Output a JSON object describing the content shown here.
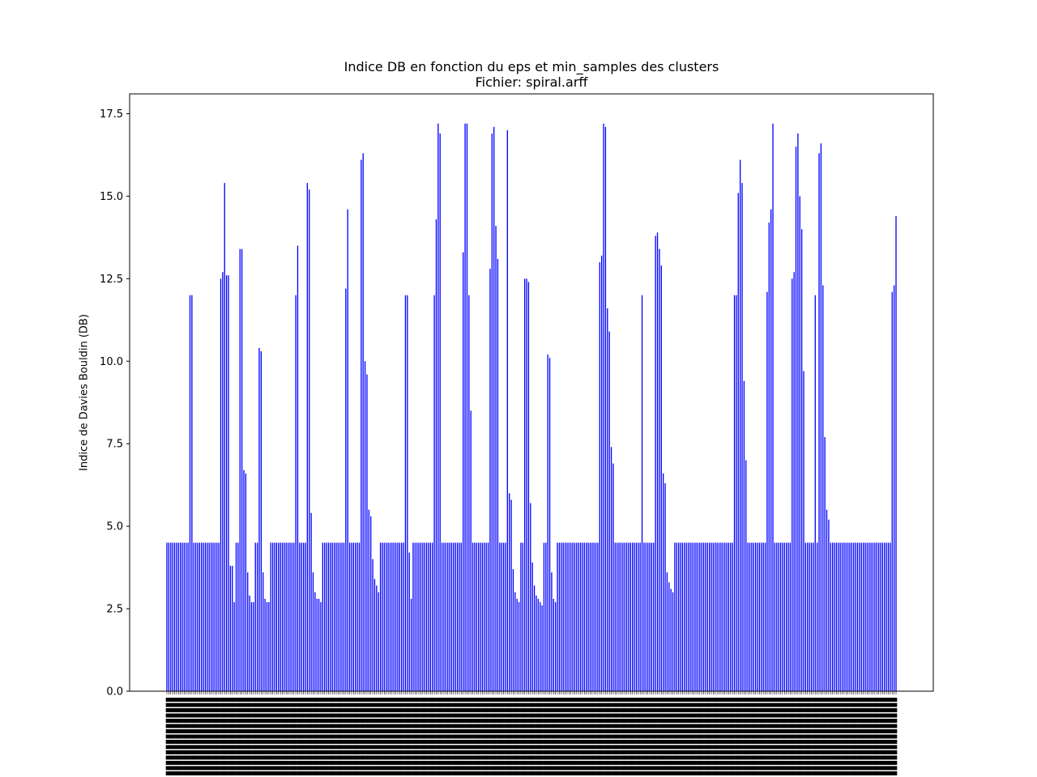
{
  "chart_data": {
    "type": "bar",
    "title": "Indice DB en fonction du eps et min_samples des clusters",
    "subtitle": "Fichier: spiral.arff",
    "xlabel": "",
    "ylabel": "Indice de Davies Bouldin (DB)",
    "ylim": [
      0,
      18.1
    ],
    "yticks": [
      "0.0",
      "2.5",
      "5.0",
      "7.5",
      "10.0",
      "12.5",
      "15.0",
      "17.5"
    ],
    "grid": false,
    "bar_color": "#0000ff",
    "x_tick_labels_legible": false,
    "values": [
      4.5,
      4.5,
      4.5,
      4.5,
      4.5,
      4.5,
      4.5,
      4.5,
      4.5,
      4.5,
      4.5,
      4.5,
      12.0,
      12.0,
      4.5,
      4.5,
      4.5,
      4.5,
      4.5,
      4.5,
      4.5,
      4.5,
      4.5,
      4.5,
      4.5,
      4.5,
      4.5,
      4.5,
      12.5,
      12.7,
      15.4,
      12.6,
      12.6,
      3.8,
      3.8,
      2.7,
      4.5,
      4.5,
      13.4,
      13.4,
      6.7,
      6.6,
      3.6,
      2.9,
      2.7,
      2.7,
      4.5,
      4.5,
      10.4,
      10.3,
      3.6,
      2.8,
      2.7,
      2.7,
      4.5,
      4.5,
      4.5,
      4.5,
      4.5,
      4.5,
      4.5,
      4.5,
      4.5,
      4.5,
      4.5,
      4.5,
      4.5,
      12.0,
      13.5,
      4.5,
      4.5,
      4.5,
      4.5,
      15.4,
      15.2,
      5.4,
      3.6,
      3.0,
      2.8,
      2.8,
      2.7,
      4.5,
      4.5,
      4.5,
      4.5,
      4.5,
      4.5,
      4.5,
      4.5,
      4.5,
      4.5,
      4.5,
      4.5,
      12.2,
      14.6,
      4.5,
      4.5,
      4.5,
      4.5,
      4.5,
      4.5,
      16.1,
      16.3,
      10.0,
      9.6,
      5.5,
      5.3,
      4.0,
      3.4,
      3.2,
      3.0,
      4.5,
      4.5,
      4.5,
      4.5,
      4.5,
      4.5,
      4.5,
      4.5,
      4.5,
      4.5,
      4.5,
      4.5,
      4.5,
      12.0,
      12.0,
      4.2,
      2.8,
      4.5,
      4.5,
      4.5,
      4.5,
      4.5,
      4.5,
      4.5,
      4.5,
      4.5,
      4.5,
      4.5,
      12.0,
      14.3,
      17.2,
      16.9,
      4.5,
      4.5,
      4.5,
      4.5,
      4.5,
      4.5,
      4.5,
      4.5,
      4.5,
      4.5,
      4.5,
      13.3,
      17.2,
      17.2,
      12.0,
      8.5,
      4.5,
      4.5,
      4.5,
      4.5,
      4.5,
      4.5,
      4.5,
      4.5,
      4.5,
      12.8,
      16.9,
      17.1,
      14.1,
      13.1,
      4.5,
      4.5,
      4.5,
      4.5,
      17.0,
      6.0,
      5.8,
      3.7,
      3.0,
      2.8,
      2.7,
      4.5,
      4.5,
      12.5,
      12.5,
      12.4,
      5.7,
      3.9,
      3.2,
      2.9,
      2.8,
      2.7,
      2.6,
      4.5,
      4.5,
      10.2,
      10.1,
      3.6,
      2.8,
      2.7,
      4.5,
      4.5,
      4.5,
      4.5,
      4.5,
      4.5,
      4.5,
      4.5,
      4.5,
      4.5,
      4.5,
      4.5,
      4.5,
      4.5,
      4.5,
      4.5,
      4.5,
      4.5,
      4.5,
      4.5,
      4.5,
      4.5,
      13.0,
      13.2,
      17.2,
      17.1,
      11.6,
      10.9,
      7.4,
      6.9,
      4.5,
      4.5,
      4.5,
      4.5,
      4.5,
      4.5,
      4.5,
      4.5,
      4.5,
      4.5,
      4.5,
      4.5,
      4.5,
      4.5,
      12.0,
      4.5,
      4.5,
      4.5,
      4.5,
      4.5,
      4.5,
      13.8,
      13.9,
      13.4,
      12.9,
      6.6,
      6.3,
      3.6,
      3.3,
      3.1,
      3.0,
      4.5,
      4.5,
      4.5,
      4.5,
      4.5,
      4.5,
      4.5,
      4.5,
      4.5,
      4.5,
      4.5,
      4.5,
      4.5,
      4.5,
      4.5,
      4.5,
      4.5,
      4.5,
      4.5,
      4.5,
      4.5,
      4.5,
      4.5,
      4.5,
      4.5,
      4.5,
      4.5,
      4.5,
      4.5,
      4.5,
      4.5,
      12.0,
      12.0,
      15.1,
      16.1,
      15.4,
      9.4,
      7.0,
      4.5,
      4.5,
      4.5,
      4.5,
      4.5,
      4.5,
      4.5,
      4.5,
      4.5,
      4.5,
      12.1,
      14.2,
      14.6,
      17.2,
      4.5,
      4.5,
      4.5,
      4.5,
      4.5,
      4.5,
      4.5,
      4.5,
      4.5,
      12.5,
      12.7,
      16.5,
      16.9,
      15.0,
      14.0,
      9.7,
      4.5,
      4.5,
      4.5,
      4.5,
      4.5,
      12.0,
      4.5,
      16.3,
      16.6,
      12.3,
      7.7,
      5.5,
      5.2,
      4.5,
      4.5,
      4.5,
      4.5,
      4.5,
      4.5,
      4.5,
      4.5,
      4.5,
      4.5,
      4.5,
      4.5,
      4.5,
      4.5,
      4.5,
      4.5,
      4.5,
      4.5,
      4.5,
      4.5,
      4.5,
      4.5,
      4.5,
      4.5,
      4.5,
      4.5,
      4.5,
      4.5,
      4.5,
      4.5,
      4.5,
      4.5,
      12.1,
      12.3,
      14.4
    ]
  }
}
